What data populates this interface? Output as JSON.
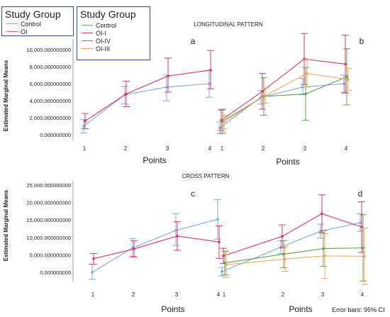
{
  "panel_label_a": "a",
  "panel_label_b": "b",
  "panel_label_c": "c",
  "panel_label_d": "d",
  "section_title_top": "LONGITUDINAL PATTERN",
  "section_title_bottom": "CROSS PATTERN",
  "ylabel": "Estimated Marginal Means",
  "xlabel": "Points",
  "error_bar_note": "Error bars: 95% CI",
  "legend_small": {
    "title": "Study Group",
    "items": [
      {
        "label": "Control",
        "color": "#7fa7dd"
      },
      {
        "label": "OI",
        "color": "#e8623a"
      }
    ]
  },
  "legend_large": {
    "title": "Study Group",
    "items": [
      {
        "label": "Control",
        "color": "#7fa7dd"
      },
      {
        "label": "OI-I",
        "color": "#d9366b"
      },
      {
        "label": "OI-IV",
        "color": "#5fa04e"
      },
      {
        "label": "OI-III",
        "color": "#f0a65e"
      }
    ]
  },
  "chart_data": [
    {
      "type": "line",
      "panel": "a",
      "x": [
        1,
        2,
        3,
        4
      ],
      "xlabel": "Points",
      "ylabel": "Estimated Marginal Means",
      "ylim": [
        0,
        10000
      ],
      "yticks": [
        0,
        2000,
        4000,
        6000,
        8000,
        10000
      ],
      "ytick_labels": [
        "0.000000000",
        "2,000.000000000",
        "4,000.000000000",
        "6,000.000000000",
        "8,000.000000000",
        "10,000.000000000"
      ],
      "error_bars": "95% CI",
      "series": [
        {
          "name": "Control",
          "color": "#7fa7dd",
          "values": [
            1000,
            4700,
            5600,
            6000
          ],
          "low": [
            200,
            3600,
            4000,
            4400
          ],
          "high": [
            1800,
            5700,
            7000,
            7500
          ]
        },
        {
          "name": "OI",
          "color": "#d9366b",
          "values": [
            1600,
            4800,
            6900,
            7600
          ],
          "low": [
            700,
            3300,
            5000,
            5400
          ],
          "high": [
            2500,
            6300,
            9000,
            9900
          ]
        }
      ]
    },
    {
      "type": "line",
      "panel": "b",
      "x": [
        1,
        2,
        3,
        4
      ],
      "xlabel": "Points",
      "ylim": [
        0,
        10000
      ],
      "error_bars": "95% CI",
      "series": [
        {
          "name": "Control",
          "color": "#7fa7dd",
          "values": [
            800,
            4400,
            5600,
            6000
          ],
          "low": [
            100,
            3600,
            4700,
            5000
          ],
          "high": [
            1500,
            5200,
            6600,
            7000
          ]
        },
        {
          "name": "OI-I",
          "color": "#d9366b",
          "values": [
            1700,
            5100,
            8900,
            8300
          ],
          "low": [
            500,
            3000,
            5900,
            4900
          ],
          "high": [
            2900,
            7200,
            11900,
            11700
          ]
        },
        {
          "name": "OI-IV",
          "color": "#5fa04e",
          "values": [
            1600,
            4500,
            4800,
            6800
          ],
          "low": [
            200,
            2300,
            1700,
            3500
          ],
          "high": [
            3000,
            6700,
            7900,
            10100
          ]
        },
        {
          "name": "OI-III",
          "color": "#f0a65e",
          "values": [
            1500,
            4600,
            7200,
            6500
          ],
          "low": [
            700,
            3700,
            5600,
            5200
          ],
          "high": [
            2300,
            5500,
            8800,
            7800
          ]
        }
      ]
    },
    {
      "type": "line",
      "panel": "c",
      "x": [
        1,
        2,
        3,
        4
      ],
      "xlabel": "Points",
      "ylabel": "Estimated Marginal Means",
      "ylim": [
        -4000,
        26000
      ],
      "yticks": [
        0,
        5000,
        10000,
        15000,
        20000,
        25000
      ],
      "ytick_labels": [
        "0.000000000",
        "5,000.000000000",
        "10,000.000000000",
        "15,000.000000000",
        "20,000.000000000",
        "25,000.000000000"
      ],
      "error_bars": "95% CI",
      "series": [
        {
          "name": "Control",
          "color": "#7fa7dd",
          "values": [
            0,
            7000,
            12000,
            15200
          ],
          "low": [
            -2000,
            4600,
            7700,
            9500
          ],
          "high": [
            2300,
            9700,
            16800,
            20800
          ]
        },
        {
          "name": "OI",
          "color": "#d9366b",
          "values": [
            3900,
            6700,
            10400,
            8700
          ],
          "low": [
            2300,
            4400,
            6300,
            4000
          ],
          "high": [
            5400,
            9000,
            14500,
            13300
          ]
        }
      ]
    },
    {
      "type": "line",
      "panel": "d",
      "x": [
        1,
        2,
        3,
        4
      ],
      "xlabel": "Points",
      "ylim": [
        -4000,
        26000
      ],
      "error_bars": "95% CI",
      "series": [
        {
          "name": "Control",
          "color": "#7fa7dd",
          "values": [
            200,
            7200,
            11800,
            14200
          ],
          "low": [
            -1000,
            5400,
            9800,
            11800
          ],
          "high": [
            1400,
            9000,
            13800,
            16800
          ]
        },
        {
          "name": "OI-I",
          "color": "#d9366b",
          "values": [
            4700,
            10300,
            16800,
            13000
          ],
          "low": [
            2500,
            7000,
            11300,
            5700
          ],
          "high": [
            6900,
            13600,
            22200,
            20200
          ]
        },
        {
          "name": "OI-IV",
          "color": "#5fa04e",
          "values": [
            2700,
            5200,
            6800,
            7000
          ],
          "low": [
            -700,
            1300,
            1700,
            -2500
          ],
          "high": [
            6100,
            9100,
            11900,
            16500
          ]
        },
        {
          "name": "OI-III",
          "color": "#f0a65e",
          "values": [
            2200,
            3800,
            4700,
            4600
          ],
          "low": [
            -1500,
            300,
            -1700,
            -3500
          ],
          "high": [
            5900,
            7300,
            11100,
            12700
          ]
        }
      ]
    }
  ]
}
